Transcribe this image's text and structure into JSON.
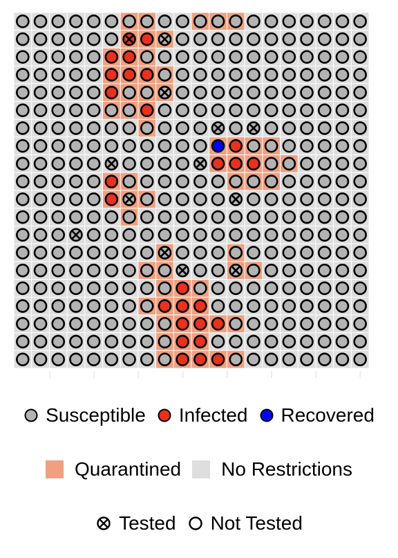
{
  "chart_data": {
    "type": "heatmap",
    "title": "",
    "xlabel": "",
    "ylabel": "",
    "grid_size": [
      20,
      20
    ],
    "state_codes": {
      "S": "Susceptible",
      "I": "Infected",
      "R": "Recovered"
    },
    "zone_codes": {
      "Q": "Quarantined",
      "N": "No Restrictions"
    },
    "test_codes": {
      "X": "Tested",
      ".": "Not Tested"
    },
    "states": [
      "SSSSSSSSSSSSSSSSSSSS",
      "SSSSSSIISSSSSSSSSSSS",
      "SSSSSIISSSSSSSSSSSSS",
      "SSSSSIIISSSSSSSSSSSS",
      "SSSSSISSSSSSSSSSSSSS",
      "SSSSSSSISSSSSSSSSSSS",
      "SSSSSSSSSSSSSSSSSSSS",
      "SSSSSSSSSSSRISSSSSSS",
      "SSSSSSSSSSSIIISSSSSS",
      "SSSSSISSSSSSSSSSSSSS",
      "SSSSSISSSSSSSSSSSSSS",
      "SSSSSSSSSSSSSSSSSSSS",
      "SSSSSSSSSSSSSSSSSSSS",
      "SSSSSSSSSSSSSSSSSSSS",
      "SSSSSSSSSSSSSSSSSSSS",
      "SSSSSSSSSISSSSSSSSSS",
      "SSSSSSSSIIISSSSSSSSS",
      "SSSSSSSSSIIISSSSSSSS",
      "SSSSSSSSSIISSSSSSSSS",
      "SSSSSSSSSIIISSSSSSSS"
    ],
    "zones": [
      "NNNNNNQQNNQQQNNNNNNN",
      "NNNNNNQQQNNNNNNNNNNN",
      "NNNNNQQQNNNNNNNNNNNN",
      "NNNNNQQQQNNNNNNNNNNN",
      "NNNNNQQQQNNNNNNNNNNN",
      "NNNNNQQQNNNNNNNNNNNN",
      "NNNNNNNQNNNNNNNNNNNN",
      "NNNNNNNNNNNQQQQNNNNN",
      "NNNNNNNNNNNQQQQQNNNN",
      "NNNNNQQNNNNNQQQNNNNN",
      "NNNNNQQQNNNNNNNNNNNN",
      "NNNNNNQNNNNNNNNNNNNN",
      "NNNNNNNNNNNNNNNNNNNN",
      "NNNNNNNNQNNNQNNNNNNN",
      "NNNNNNNQQNNNQQNNNNNN",
      "NNNNNNNNQQQNNNNNNNNN",
      "NNNNNNNQQQQNNNNNNNNN",
      "NNNNNNNNQQQQQNNNNNNN",
      "NNNNNNNNQQQNNNNNNNNN",
      "NNNNNNNNQQQQQNNNNNNN"
    ],
    "tests": [
      "....................",
      "......X.X...........",
      "....................",
      "....................",
      "........X...........",
      "....................",
      "...........X.X......",
      "....................",
      ".....X....X.........",
      "....................",
      "......X.....X.......",
      "....................",
      "...X................",
      "........X...........",
      ".........X..X.......",
      "....................",
      "....................",
      "....................",
      "....................",
      "...................."
    ],
    "legend": {
      "position": "bottom",
      "state_entries": [
        "Susceptible",
        "Infected",
        "Recovered"
      ],
      "zone_entries": [
        "Quarantined",
        "No Restrictions"
      ],
      "test_entries": [
        "Tested",
        "Not Tested"
      ]
    },
    "colors": {
      "S": "#b3b3b3",
      "I": "#e8311e",
      "R": "#0000ff",
      "Q": "#f0a080",
      "N": "#dedede",
      "grid": "#ffffff",
      "outline": "#000000"
    }
  }
}
